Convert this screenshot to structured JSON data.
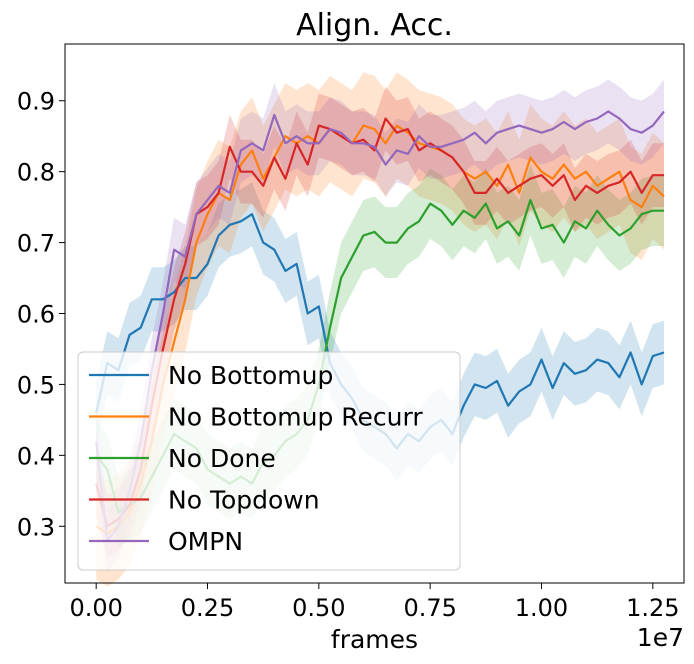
{
  "chart_data": {
    "type": "line",
    "title": "Align. Acc.",
    "xlabel": "frames",
    "ylabel": "",
    "x_offset_label": "1e7",
    "xlim": [
      -0.07,
      1.32
    ],
    "ylim": [
      0.22,
      0.98
    ],
    "xticks": [
      0.0,
      0.25,
      0.5,
      0.75,
      1.0,
      1.25
    ],
    "xtick_labels": [
      "0.00",
      "0.25",
      "0.50",
      "0.75",
      "1.00",
      "1.25"
    ],
    "yticks": [
      0.3,
      0.4,
      0.5,
      0.6,
      0.7,
      0.8,
      0.9
    ],
    "ytick_labels": [
      "0.3",
      "0.4",
      "0.5",
      "0.6",
      "0.7",
      "0.8",
      "0.9"
    ],
    "grid": false,
    "legend_position": "lower-left",
    "band_opacity": 0.2,
    "x": [
      0.0,
      0.025,
      0.05,
      0.075,
      0.1,
      0.125,
      0.15,
      0.175,
      0.2,
      0.225,
      0.25,
      0.275,
      0.3,
      0.325,
      0.35,
      0.375,
      0.4,
      0.425,
      0.45,
      0.475,
      0.5,
      0.525,
      0.55,
      0.575,
      0.6,
      0.625,
      0.65,
      0.675,
      0.7,
      0.725,
      0.75,
      0.775,
      0.8,
      0.825,
      0.85,
      0.875,
      0.9,
      0.925,
      0.95,
      0.975,
      1.0,
      1.025,
      1.05,
      1.075,
      1.1,
      1.125,
      1.15,
      1.175,
      1.2,
      1.225,
      1.25,
      1.275
    ],
    "series": [
      {
        "name": "No Bottomup",
        "color": "#1f77b4",
        "band": 0.045,
        "values": [
          0.46,
          0.53,
          0.52,
          0.57,
          0.58,
          0.62,
          0.62,
          0.63,
          0.65,
          0.65,
          0.67,
          0.71,
          0.725,
          0.73,
          0.74,
          0.7,
          0.69,
          0.66,
          0.67,
          0.6,
          0.61,
          0.53,
          0.5,
          0.48,
          0.45,
          0.44,
          0.43,
          0.41,
          0.43,
          0.42,
          0.44,
          0.45,
          0.43,
          0.47,
          0.5,
          0.495,
          0.505,
          0.47,
          0.49,
          0.5,
          0.535,
          0.495,
          0.53,
          0.515,
          0.52,
          0.535,
          0.53,
          0.51,
          0.545,
          0.5,
          0.54,
          0.545
        ]
      },
      {
        "name": "No Bottomup Recurr",
        "color": "#ff7f0e",
        "band": 0.075,
        "values": [
          0.3,
          0.29,
          0.3,
          0.32,
          0.36,
          0.42,
          0.5,
          0.56,
          0.62,
          0.7,
          0.74,
          0.77,
          0.76,
          0.81,
          0.83,
          0.79,
          0.82,
          0.85,
          0.84,
          0.85,
          0.84,
          0.86,
          0.85,
          0.84,
          0.865,
          0.86,
          0.84,
          0.865,
          0.855,
          0.84,
          0.835,
          0.83,
          0.82,
          0.8,
          0.79,
          0.8,
          0.78,
          0.81,
          0.77,
          0.82,
          0.8,
          0.79,
          0.81,
          0.79,
          0.8,
          0.78,
          0.79,
          0.8,
          0.76,
          0.75,
          0.78,
          0.765
        ]
      },
      {
        "name": "No Done",
        "color": "#2ca02c",
        "band": 0.05,
        "values": [
          0.4,
          0.38,
          0.32,
          0.33,
          0.34,
          0.37,
          0.4,
          0.43,
          0.42,
          0.41,
          0.38,
          0.37,
          0.36,
          0.37,
          0.36,
          0.39,
          0.4,
          0.42,
          0.43,
          0.45,
          0.5,
          0.58,
          0.65,
          0.68,
          0.71,
          0.715,
          0.7,
          0.7,
          0.72,
          0.73,
          0.755,
          0.745,
          0.725,
          0.745,
          0.735,
          0.755,
          0.72,
          0.73,
          0.71,
          0.76,
          0.72,
          0.725,
          0.7,
          0.73,
          0.72,
          0.745,
          0.725,
          0.71,
          0.72,
          0.74,
          0.745,
          0.745
        ]
      },
      {
        "name": "No Topdown",
        "color": "#d62728",
        "band": 0.045,
        "values": [
          0.36,
          0.3,
          0.31,
          0.33,
          0.38,
          0.47,
          0.55,
          0.62,
          0.67,
          0.74,
          0.75,
          0.77,
          0.835,
          0.8,
          0.8,
          0.78,
          0.82,
          0.79,
          0.84,
          0.81,
          0.865,
          0.86,
          0.85,
          0.84,
          0.845,
          0.83,
          0.875,
          0.855,
          0.86,
          0.83,
          0.84,
          0.83,
          0.82,
          0.8,
          0.77,
          0.77,
          0.79,
          0.77,
          0.78,
          0.79,
          0.795,
          0.78,
          0.795,
          0.76,
          0.78,
          0.77,
          0.78,
          0.785,
          0.8,
          0.77,
          0.795,
          0.795
        ]
      },
      {
        "name": "OMPN",
        "color": "#9467bd",
        "band": 0.045,
        "values": [
          0.42,
          0.28,
          0.3,
          0.35,
          0.42,
          0.52,
          0.6,
          0.69,
          0.68,
          0.74,
          0.76,
          0.78,
          0.77,
          0.83,
          0.84,
          0.83,
          0.88,
          0.84,
          0.85,
          0.84,
          0.84,
          0.86,
          0.855,
          0.84,
          0.84,
          0.835,
          0.81,
          0.83,
          0.825,
          0.85,
          0.835,
          0.835,
          0.84,
          0.845,
          0.855,
          0.84,
          0.855,
          0.86,
          0.865,
          0.86,
          0.855,
          0.86,
          0.87,
          0.86,
          0.87,
          0.875,
          0.885,
          0.875,
          0.86,
          0.855,
          0.865,
          0.885
        ]
      }
    ]
  }
}
